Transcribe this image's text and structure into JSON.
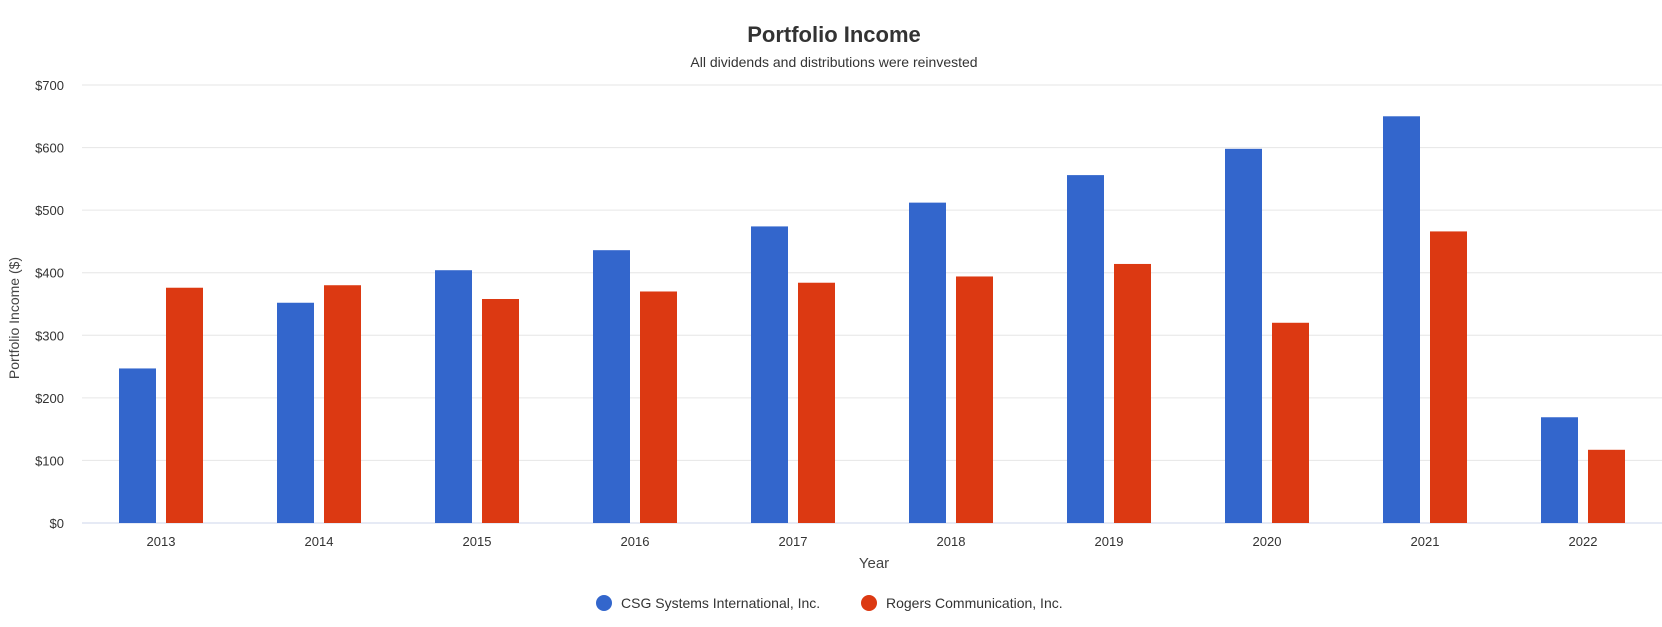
{
  "chart_data": {
    "type": "bar",
    "title": "Portfolio Income",
    "subtitle": "All dividends and distributions were reinvested",
    "xlabel": "Year",
    "ylabel": "Portfolio Income ($)",
    "ylim": [
      0,
      700
    ],
    "y_ticks": [
      {
        "value": 0,
        "label": "$0"
      },
      {
        "value": 100,
        "label": "$100"
      },
      {
        "value": 200,
        "label": "$200"
      },
      {
        "value": 300,
        "label": "$300"
      },
      {
        "value": 400,
        "label": "$400"
      },
      {
        "value": 500,
        "label": "$500"
      },
      {
        "value": 600,
        "label": "$600"
      },
      {
        "value": 700,
        "label": "$700"
      }
    ],
    "grid": true,
    "legend_position": "bottom-center",
    "categories": [
      "2013",
      "2014",
      "2015",
      "2016",
      "2017",
      "2018",
      "2019",
      "2020",
      "2021",
      "2022"
    ],
    "series": [
      {
        "name": "CSG Systems International, Inc.",
        "color": "#3366cc",
        "values": [
          247,
          352,
          404,
          436,
          474,
          512,
          556,
          598,
          650,
          169
        ]
      },
      {
        "name": "Rogers Communication, Inc.",
        "color": "#dc3912",
        "values": [
          376,
          380,
          358,
          370,
          384,
          394,
          414,
          320,
          466,
          117
        ]
      }
    ]
  }
}
